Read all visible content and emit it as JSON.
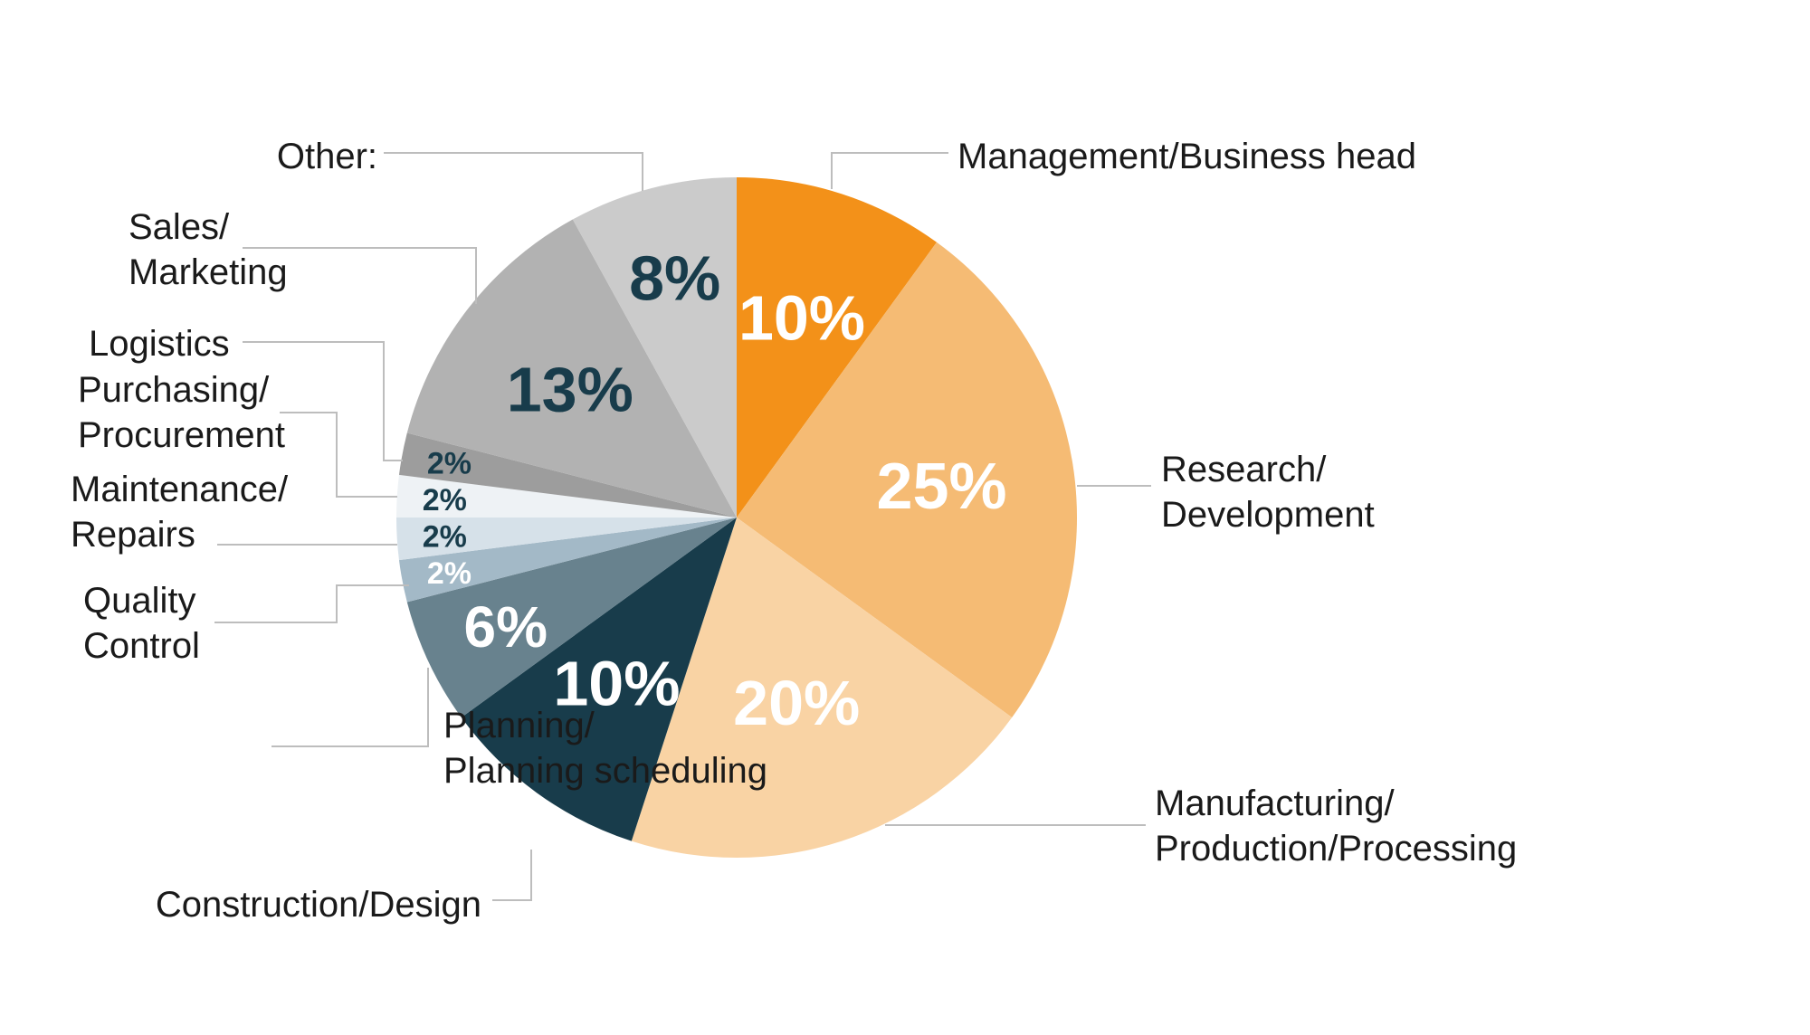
{
  "chart_data": {
    "type": "pie",
    "title": "",
    "start_angle_deg": 0,
    "direction": "clockwise",
    "slices": [
      {
        "label": "Management/Business head",
        "lines": [
          "Management/Business head"
        ],
        "value": 10,
        "display": "10%",
        "color": "#F39119",
        "text_color": "#FFFFFF"
      },
      {
        "label": "Research/ Development",
        "lines": [
          "Research/",
          "Development"
        ],
        "value": 25,
        "display": "25%",
        "color": "#F5BB74",
        "text_color": "#FFFFFF"
      },
      {
        "label": "Manufacturing/ Production/Processing",
        "lines": [
          "Manufacturing/",
          "Production/Processing"
        ],
        "value": 20,
        "display": "20%",
        "color": "#F9D3A4",
        "text_color": "#FFFFFF"
      },
      {
        "label": "Construction/Design",
        "lines": [
          "Construction/Design"
        ],
        "value": 10,
        "display": "10%",
        "color": "#183C4B",
        "text_color": "#FFFFFF"
      },
      {
        "label": "Planning/ Planning scheduling",
        "lines": [
          "Planning/",
          "Planning scheduling"
        ],
        "value": 6,
        "display": "6%",
        "color": "#68828E",
        "text_color": "#FFFFFF"
      },
      {
        "label": "Quality Control",
        "lines": [
          "Quality",
          "Control"
        ],
        "value": 2,
        "display": "2%",
        "color": "#A3B9C7",
        "text_color": "#FFFFFF"
      },
      {
        "label": "Maintenance/ Repairs",
        "lines": [
          "Maintenance/",
          "Repairs"
        ],
        "value": 2,
        "display": "2%",
        "color": "#D6E1E9",
        "text_color": "#183C4B"
      },
      {
        "label": "Purchasing/ Procurement",
        "lines": [
          "Purchasing/",
          "Procurement"
        ],
        "value": 2,
        "display": "2%",
        "color": "#EEF2F5",
        "text_color": "#183C4B"
      },
      {
        "label": "Logistics",
        "lines": [
          "Logistics"
        ],
        "value": 2,
        "display": "2%",
        "color": "#9D9D9D",
        "text_color": "#183C4B"
      },
      {
        "label": "Sales/ Marketing",
        "lines": [
          "Sales/",
          "Marketing"
        ],
        "value": 13,
        "display": "13%",
        "color": "#B2B2B2",
        "text_color": "#183C4B"
      },
      {
        "label": "Other:",
        "lines": [
          "Other:"
        ],
        "value": 8,
        "display": "8%",
        "color": "#CBCBCB",
        "text_color": "#183C4B"
      }
    ]
  }
}
